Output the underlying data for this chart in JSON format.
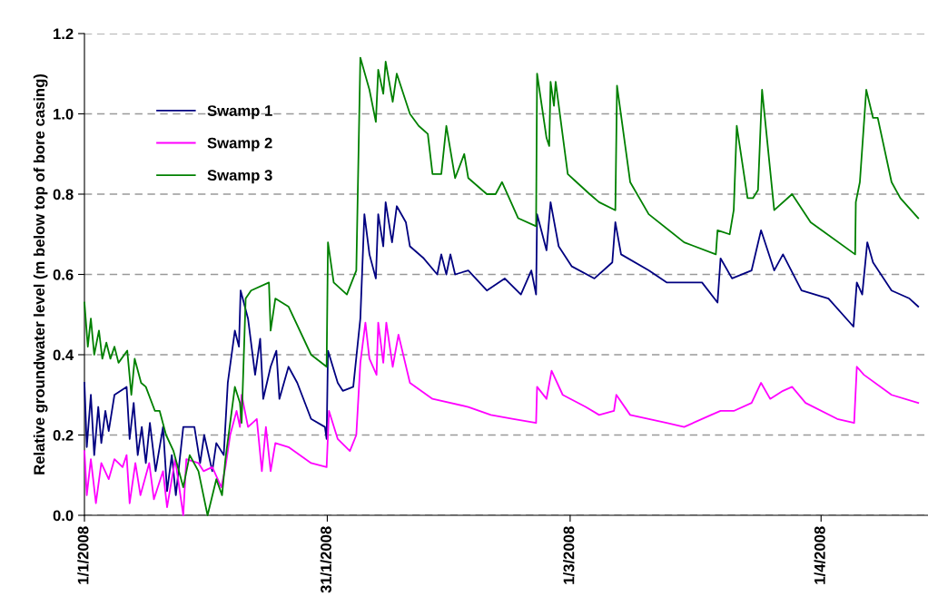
{
  "chart_data": {
    "type": "line",
    "ylabel": "Relative groundwater level (m below top of bore casing)",
    "xlim": [
      "2008-01-01T00:00",
      "2008-04-14T05:00"
    ],
    "xticks": [
      {
        "value": "2008-01-01",
        "label": "1/1/2008"
      },
      {
        "value": "2008-01-31",
        "label": "31/1/2008"
      },
      {
        "value": "2008-03-01",
        "label": "1/3/2008"
      },
      {
        "value": "2008-04-01",
        "label": "1/4/2008"
      }
    ],
    "ylim": [
      0,
      1.2
    ],
    "yticks": [
      {
        "value": 0,
        "label": "0.0"
      },
      {
        "value": 0.2,
        "label": "0.2"
      },
      {
        "value": 0.4,
        "label": "0.4"
      },
      {
        "value": 0.6,
        "label": "0.6"
      },
      {
        "value": 0.8,
        "label": "0.8"
      },
      {
        "value": 1.0,
        "label": "1.0"
      },
      {
        "value": 1.2,
        "label": "1.2"
      }
    ],
    "grid": "y",
    "legend": "top left",
    "marker": "none",
    "line_style": "solid",
    "series": [
      {
        "name": "Swamp 1",
        "color": "#000080",
        "x": [
          "2008-01-01T00:00",
          "2008-01-01T07:00",
          "2008-01-01T19:00",
          "2008-01-02T05:00",
          "2008-01-02T17:00",
          "2008-01-03T02:00",
          "2008-01-03T14:00",
          "2008-01-04T00:00",
          "2008-01-04T17:00",
          "2008-01-06T05:00",
          "2008-01-06T14:00",
          "2008-01-07T02:00",
          "2008-01-07T14:00",
          "2008-01-08T02:00",
          "2008-01-08T14:00",
          "2008-01-09T02:00",
          "2008-01-09T19:00",
          "2008-01-10T17:00",
          "2008-01-11T05:00",
          "2008-01-11T19:00",
          "2008-01-12T07:00",
          "2008-01-13T05:00",
          "2008-01-14T14:00",
          "2008-01-15T07:00",
          "2008-01-15T19:00",
          "2008-01-16T19:00",
          "2008-01-17T07:00",
          "2008-01-18T05:00",
          "2008-01-18T17:00",
          "2008-01-19T14:00",
          "2008-01-20T02:00",
          "2008-01-20T07:00",
          "2008-01-21T05:00",
          "2008-01-22T02:00",
          "2008-01-22T17:00",
          "2008-01-23T02:00",
          "2008-01-24T00:00",
          "2008-01-24T17:00",
          "2008-01-25T02:00",
          "2008-01-26T05:00",
          "2008-01-27T07:00",
          "2008-01-29T00:00",
          "2008-01-30T17:00",
          "2008-01-30T22:00",
          "2008-01-31T02:00",
          "2008-02-01T07:00",
          "2008-02-01T22:00",
          "2008-02-03T05:00",
          "2008-02-04T02:00",
          "2008-02-04T14:00",
          "2008-02-05T05:00",
          "2008-02-06T00:00",
          "2008-02-06T07:00",
          "2008-02-06T22:00",
          "2008-02-07T05:00",
          "2008-02-08T00:00",
          "2008-02-08T14:00",
          "2008-02-09T17:00",
          "2008-02-10T05:00",
          "2008-02-11T22:00",
          "2008-02-13T14:00",
          "2008-02-14T02:00",
          "2008-02-14T17:00",
          "2008-02-15T05:00",
          "2008-02-15T19:00",
          "2008-02-17T10:00",
          "2008-02-19T17:00",
          "2008-02-21T22:00",
          "2008-02-23T22:00",
          "2008-02-25T05:00",
          "2008-02-25T19:00",
          "2008-02-25T22:00",
          "2008-02-27T02:00",
          "2008-02-27T14:00",
          "2008-02-28T14:00",
          "2008-03-01T05:00",
          "2008-03-04T00:00",
          "2008-03-06T05:00",
          "2008-03-06T14:00",
          "2008-03-07T07:00",
          "2008-03-10T17:00",
          "2008-03-12T22:00",
          "2008-03-17T07:00",
          "2008-03-19T05:00",
          "2008-03-19T14:00",
          "2008-03-21T00:00",
          "2008-03-23T10:00",
          "2008-03-24T14:00",
          "2008-03-26T05:00",
          "2008-03-27T07:00",
          "2008-03-29T14:00",
          "2008-04-01T22:00",
          "2008-04-05T00:00",
          "2008-04-05T10:00",
          "2008-04-06T02:00",
          "2008-04-06T17:00",
          "2008-04-07T10:00",
          "2008-04-09T17:00",
          "2008-04-11T22:00",
          "2008-04-13T00:00"
        ],
        "values": [
          0.33,
          0.17,
          0.3,
          0.15,
          0.27,
          0.18,
          0.26,
          0.21,
          0.3,
          0.32,
          0.19,
          0.28,
          0.15,
          0.22,
          0.13,
          0.23,
          0.11,
          0.22,
          0.06,
          0.15,
          0.05,
          0.22,
          0.22,
          0.13,
          0.2,
          0.11,
          0.18,
          0.15,
          0.33,
          0.46,
          0.42,
          0.56,
          0.49,
          0.35,
          0.44,
          0.29,
          0.37,
          0.41,
          0.29,
          0.37,
          0.33,
          0.24,
          0.22,
          0.19,
          0.41,
          0.33,
          0.31,
          0.32,
          0.49,
          0.75,
          0.65,
          0.59,
          0.75,
          0.67,
          0.78,
          0.68,
          0.77,
          0.73,
          0.67,
          0.64,
          0.6,
          0.65,
          0.6,
          0.65,
          0.6,
          0.61,
          0.56,
          0.59,
          0.55,
          0.61,
          0.55,
          0.75,
          0.66,
          0.78,
          0.67,
          0.62,
          0.59,
          0.63,
          0.73,
          0.65,
          0.61,
          0.58,
          0.58,
          0.53,
          0.64,
          0.59,
          0.61,
          0.71,
          0.61,
          0.65,
          0.56,
          0.54,
          0.47,
          0.58,
          0.55,
          0.68,
          0.63,
          0.56,
          0.54,
          0.52
        ]
      },
      {
        "name": "Swamp 2",
        "color": "#ff00ff",
        "x": [
          "2008-01-01T00:00",
          "2008-01-01T07:00",
          "2008-01-01T19:00",
          "2008-01-02T10:00",
          "2008-01-03T02:00",
          "2008-01-04T00:00",
          "2008-01-04T17:00",
          "2008-01-05T17:00",
          "2008-01-06T05:00",
          "2008-01-06T14:00",
          "2008-01-07T07:00",
          "2008-01-07T22:00",
          "2008-01-09T00:00",
          "2008-01-09T14:00",
          "2008-01-10T17:00",
          "2008-01-11T05:00",
          "2008-01-12T05:00",
          "2008-01-13T05:00",
          "2008-01-13T14:00",
          "2008-01-15T02:00",
          "2008-01-15T17:00",
          "2008-01-16T19:00",
          "2008-01-17T22:00",
          "2008-01-18T10:00",
          "2008-01-19T00:00",
          "2008-01-19T19:00",
          "2008-01-20T05:00",
          "2008-01-20T10:00",
          "2008-01-21T05:00",
          "2008-01-22T07:00",
          "2008-01-22T22:00",
          "2008-01-23T10:00",
          "2008-01-24T00:00",
          "2008-01-24T14:00",
          "2008-01-26T05:00",
          "2008-01-29T00:00",
          "2008-01-30T22:00",
          "2008-01-31T05:00",
          "2008-02-01T07:00",
          "2008-02-02T19:00",
          "2008-02-03T14:00",
          "2008-02-04T02:00",
          "2008-02-04T17:00",
          "2008-02-05T05:00",
          "2008-02-06T02:00",
          "2008-02-06T07:00",
          "2008-02-06T22:00",
          "2008-02-07T07:00",
          "2008-02-08T02:00",
          "2008-02-08T19:00",
          "2008-02-10T05:00",
          "2008-02-13T00:00",
          "2008-02-17T10:00",
          "2008-02-20T05:00",
          "2008-02-23T00:00",
          "2008-02-25T19:00",
          "2008-02-25T22:00",
          "2008-02-27T02:00",
          "2008-02-27T17:00",
          "2008-02-29T02:00",
          "2008-03-02T22:00",
          "2008-03-04T14:00",
          "2008-03-06T10:00",
          "2008-03-06T17:00",
          "2008-03-08T10:00",
          "2008-03-12T22:00",
          "2008-03-15T02:00",
          "2008-03-18T10:00",
          "2008-03-19T14:00",
          "2008-03-21T05:00",
          "2008-03-23T10:00",
          "2008-03-24T14:00",
          "2008-03-25T17:00",
          "2008-03-27T07:00",
          "2008-03-28T10:00",
          "2008-03-30T02:00",
          "2008-04-03T00:00",
          "2008-04-05T02:00",
          "2008-04-05T10:00",
          "2008-04-06T07:00",
          "2008-04-09T17:00",
          "2008-04-13T00:00"
        ],
        "values": [
          0.16,
          0.05,
          0.14,
          0.03,
          0.13,
          0.09,
          0.14,
          0.12,
          0.15,
          0.03,
          0.13,
          0.05,
          0.13,
          0.04,
          0.11,
          0.02,
          0.14,
          0.0,
          0.14,
          0.13,
          0.11,
          0.12,
          0.07,
          0.12,
          0.2,
          0.26,
          0.22,
          0.3,
          0.22,
          0.24,
          0.11,
          0.22,
          0.11,
          0.18,
          0.17,
          0.13,
          0.12,
          0.26,
          0.19,
          0.16,
          0.2,
          0.38,
          0.48,
          0.39,
          0.35,
          0.48,
          0.38,
          0.48,
          0.37,
          0.45,
          0.33,
          0.29,
          0.27,
          0.25,
          0.24,
          0.23,
          0.32,
          0.29,
          0.36,
          0.3,
          0.27,
          0.25,
          0.26,
          0.3,
          0.25,
          0.23,
          0.22,
          0.25,
          0.26,
          0.26,
          0.28,
          0.33,
          0.29,
          0.31,
          0.32,
          0.28,
          0.24,
          0.23,
          0.37,
          0.35,
          0.3,
          0.28
        ]
      },
      {
        "name": "Swamp 3",
        "color": "#008000",
        "x": [
          "2008-01-01T00:00",
          "2008-01-01T10:00",
          "2008-01-01T19:00",
          "2008-01-02T05:00",
          "2008-01-02T19:00",
          "2008-01-03T05:00",
          "2008-01-03T17:00",
          "2008-01-04T05:00",
          "2008-01-04T17:00",
          "2008-01-05T05:00",
          "2008-01-06T07:00",
          "2008-01-06T19:00",
          "2008-01-07T05:00",
          "2008-01-08T00:00",
          "2008-01-08T14:00",
          "2008-01-09T17:00",
          "2008-01-10T07:00",
          "2008-01-11T02:00",
          "2008-01-12T00:00",
          "2008-01-13T05:00",
          "2008-01-14T00:00",
          "2008-01-15T02:00",
          "2008-01-16T05:00",
          "2008-01-17T07:00",
          "2008-01-18T00:00",
          "2008-01-18T10:00",
          "2008-01-19T14:00",
          "2008-01-20T05:00",
          "2008-01-20T10:00",
          "2008-01-20T22:00",
          "2008-01-21T14:00",
          "2008-01-23T19:00",
          "2008-01-24T00:00",
          "2008-01-24T14:00",
          "2008-01-26T05:00",
          "2008-01-29T00:00",
          "2008-01-30T22:00",
          "2008-01-31T02:00",
          "2008-01-31T19:00",
          "2008-02-02T10:00",
          "2008-02-03T14:00",
          "2008-02-04T02:00",
          "2008-02-05T05:00",
          "2008-02-06T00:00",
          "2008-02-06T07:00",
          "2008-02-06T22:00",
          "2008-02-07T05:00",
          "2008-02-08T02:00",
          "2008-02-08T14:00",
          "2008-02-10T05:00",
          "2008-02-11T07:00",
          "2008-02-12T10:00",
          "2008-02-13T00:00",
          "2008-02-14T02:00",
          "2008-02-14T17:00",
          "2008-02-15T19:00",
          "2008-02-16T22:00",
          "2008-02-17T10:00",
          "2008-02-19T17:00",
          "2008-02-20T19:00",
          "2008-02-21T14:00",
          "2008-02-23T14:00",
          "2008-02-25T19:00",
          "2008-02-25T22:00",
          "2008-02-27T02:00",
          "2008-02-27T10:00",
          "2008-02-27T14:00",
          "2008-02-28T00:00",
          "2008-02-28T05:00",
          "2008-02-29T17:00",
          "2008-03-01T19:00",
          "2008-03-03T10:00",
          "2008-03-04T14:00",
          "2008-03-06T14:00",
          "2008-03-06T19:00",
          "2008-03-08T10:00",
          "2008-03-10T17:00",
          "2008-03-15T02:00",
          "2008-03-19T00:00",
          "2008-03-19T05:00",
          "2008-03-20T17:00",
          "2008-03-21T05:00",
          "2008-03-21T14:00",
          "2008-03-22T22:00",
          "2008-03-23T14:00",
          "2008-03-24T05:00",
          "2008-03-24T17:00",
          "2008-03-26T05:00",
          "2008-03-28T10:00",
          "2008-03-30T17:00",
          "2008-04-05T05:00",
          "2008-04-05T07:00",
          "2008-04-05T19:00",
          "2008-04-06T14:00",
          "2008-04-07T10:00",
          "2008-04-08T00:00",
          "2008-04-09T17:00",
          "2008-04-10T19:00",
          "2008-04-13T00:00"
        ],
        "values": [
          0.53,
          0.42,
          0.49,
          0.4,
          0.46,
          0.39,
          0.43,
          0.39,
          0.42,
          0.38,
          0.41,
          0.3,
          0.39,
          0.33,
          0.32,
          0.26,
          0.26,
          0.2,
          0.16,
          0.07,
          0.15,
          0.11,
          0.0,
          0.09,
          0.05,
          0.14,
          0.32,
          0.28,
          0.23,
          0.54,
          0.56,
          0.58,
          0.46,
          0.54,
          0.52,
          0.4,
          0.37,
          0.68,
          0.58,
          0.55,
          0.61,
          1.14,
          1.06,
          0.98,
          1.11,
          1.05,
          1.13,
          1.03,
          1.1,
          1.0,
          0.97,
          0.95,
          0.85,
          0.85,
          0.97,
          0.84,
          0.9,
          0.84,
          0.8,
          0.8,
          0.83,
          0.74,
          0.72,
          1.1,
          0.94,
          0.92,
          1.08,
          1.02,
          1.08,
          0.85,
          0.83,
          0.8,
          0.78,
          0.76,
          1.07,
          0.83,
          0.75,
          0.68,
          0.65,
          0.71,
          0.7,
          0.76,
          0.97,
          0.79,
          0.79,
          0.81,
          1.06,
          0.76,
          0.8,
          0.73,
          0.65,
          0.78,
          0.83,
          1.06,
          0.99,
          0.99,
          0.83,
          0.79,
          0.74
        ]
      }
    ]
  }
}
